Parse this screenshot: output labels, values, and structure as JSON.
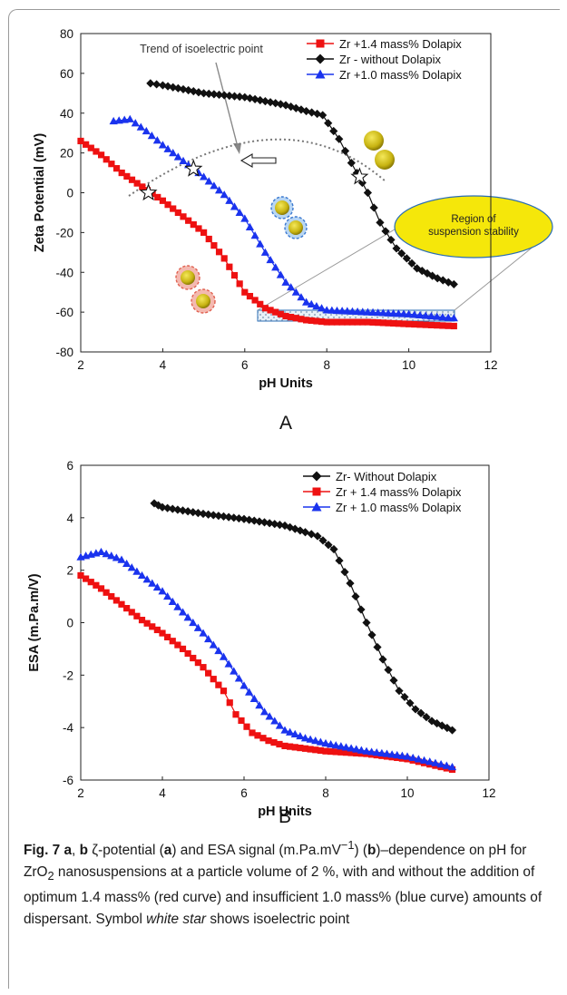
{
  "chart_data": [
    {
      "type": "scatter",
      "panel_label": "A",
      "xlabel": "pH Units",
      "ylabel": "Zeta Potential (mV)",
      "xlim": [
        2,
        12
      ],
      "ylim": [
        -80,
        80
      ],
      "xticks": [
        "2",
        "4",
        "6",
        "8",
        "10",
        "12"
      ],
      "yticks": [
        "80",
        "60",
        "40",
        "20",
        "0",
        "-20",
        "-40",
        "-60",
        "-80"
      ],
      "legend_position": "top-right",
      "annotations": {
        "trend": "Trend of isoelectric point",
        "region_line1": "Region of",
        "region_line2": "suspension stability"
      },
      "isoelectric_points": [
        {
          "x": 3.65,
          "y": 0
        },
        {
          "x": 4.75,
          "y": 12
        },
        {
          "x": 8.8,
          "y": 8
        }
      ],
      "series": [
        {
          "name": "Zr +1.4 mass% Dolapix",
          "color": "#ee1111",
          "marker": "square",
          "x": [
            2.0,
            2.5,
            3.0,
            3.5,
            4.0,
            4.5,
            5.0,
            5.5,
            6.0,
            6.5,
            7.0,
            7.5,
            8.0,
            9.0,
            10.0,
            11.1
          ],
          "y": [
            26,
            19,
            10,
            3,
            -4,
            -12,
            -20,
            -33,
            -50,
            -58,
            -62,
            -64,
            -65,
            -65,
            -66,
            -67
          ]
        },
        {
          "name": "Zr - without Dolapix",
          "color": "#111111",
          "marker": "diamond",
          "x": [
            3.7,
            4.0,
            5.0,
            6.0,
            7.0,
            7.5,
            7.9,
            8.3,
            8.6,
            9.0,
            9.3,
            9.7,
            10.2,
            10.7,
            11.1
          ],
          "y": [
            55,
            54,
            50,
            48,
            44,
            41,
            39,
            27,
            15,
            0,
            -15,
            -28,
            -38,
            -43,
            -46
          ]
        },
        {
          "name": "Zr +1.0 mass% Dolapix",
          "color": "#1a33ee",
          "marker": "triangle",
          "x": [
            2.8,
            3.2,
            3.6,
            4.0,
            4.5,
            5.0,
            5.5,
            6.0,
            6.5,
            7.0,
            7.5,
            8.0,
            9.0,
            10.0,
            11.1
          ],
          "y": [
            36,
            37,
            31,
            24,
            16,
            8,
            -1,
            -13,
            -30,
            -45,
            -55,
            -59,
            -60,
            -61,
            -63
          ]
        }
      ]
    },
    {
      "type": "scatter",
      "panel_label": "B",
      "xlabel": "pH Units",
      "ylabel": "ESA (m.Pa.m/V)",
      "xlim": [
        2,
        12
      ],
      "ylim": [
        -6,
        6
      ],
      "xticks": [
        "2",
        "4",
        "6",
        "8",
        "10",
        "12"
      ],
      "yticks": [
        "6",
        "4",
        "2",
        "0",
        "-2",
        "-4",
        "-6"
      ],
      "legend_position": "top-right",
      "series": [
        {
          "name": "Zr- Without Dolapix",
          "color": "#111111",
          "marker": "diamond",
          "x": [
            3.8,
            4.0,
            5.0,
            6.0,
            7.0,
            7.5,
            7.8,
            8.2,
            8.6,
            9.0,
            9.4,
            9.8,
            10.2,
            10.6,
            11.1
          ],
          "y": [
            4.55,
            4.4,
            4.15,
            3.95,
            3.7,
            3.45,
            3.3,
            2.8,
            1.5,
            0.0,
            -1.4,
            -2.6,
            -3.3,
            -3.75,
            -4.1
          ]
        },
        {
          "name": "Zr + 1.4 mass% Dolapix",
          "color": "#ee1111",
          "marker": "square",
          "x": [
            2.0,
            2.5,
            3.0,
            3.5,
            4.0,
            4.5,
            5.0,
            5.5,
            5.8,
            6.2,
            6.6,
            7.0,
            8.0,
            9.0,
            10.0,
            11.1
          ],
          "y": [
            1.8,
            1.3,
            0.7,
            0.1,
            -0.4,
            -1.0,
            -1.7,
            -2.6,
            -3.5,
            -4.2,
            -4.5,
            -4.7,
            -4.9,
            -5.0,
            -5.2,
            -5.6
          ]
        },
        {
          "name": "Zr + 1.0 mass% Dolapix",
          "color": "#1a33ee",
          "marker": "triangle",
          "x": [
            2.0,
            2.5,
            3.0,
            3.5,
            4.0,
            4.5,
            5.0,
            5.5,
            6.0,
            6.5,
            7.0,
            7.5,
            8.0,
            9.0,
            10.0,
            11.1
          ],
          "y": [
            2.5,
            2.7,
            2.4,
            1.8,
            1.2,
            0.4,
            -0.4,
            -1.3,
            -2.4,
            -3.4,
            -4.1,
            -4.4,
            -4.6,
            -4.9,
            -5.1,
            -5.5
          ]
        }
      ]
    }
  ],
  "caption": {
    "fig": "Fig. 7",
    "a": "a",
    "sep": ", ",
    "b": "b",
    "t1": " ζ-potential (",
    "a2": "a",
    "t2": ") and ESA signal (m.Pa.mV",
    "sup": "−1",
    "t3": ") (",
    "b2": "b",
    "t4": ")–dependence on pH for ZrO",
    "sub": "2",
    "t5": " nanosuspensions at a particle volume of 2 %, with and without the addition of optimum 1.4 mass% (red curve) and insufficient 1.0 mass% (blue curve) amounts of dispersant. Symbol ",
    "it": "white star",
    "t6": " shows isoelectric point"
  }
}
